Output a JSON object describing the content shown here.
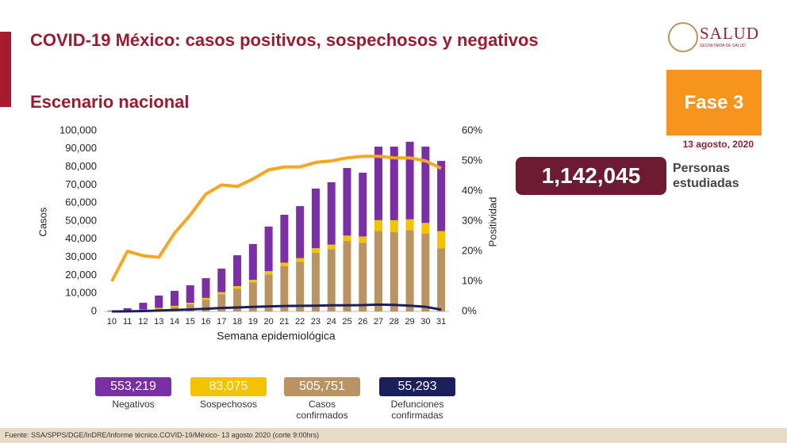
{
  "header": {
    "title": "COVID-19 México: casos positivos, sospechosos y negativos",
    "subtitle": "Escenario nacional",
    "logo": "SALUD",
    "logo_sub": "SECRETARÍA DE SALUD",
    "phase": "Fase 3",
    "date": "13 agosto, 2020"
  },
  "stats": {
    "total": "1,142,045",
    "label": "Personas estudiadas"
  },
  "chart_data": {
    "type": "stacked-bar-line",
    "categories": [
      "10",
      "11",
      "12",
      "13",
      "14",
      "15",
      "16",
      "17",
      "18",
      "19",
      "20",
      "21",
      "22",
      "23",
      "24",
      "25",
      "26",
      "27",
      "28",
      "29",
      "30",
      "31"
    ],
    "xlabel": "Semana epidemiológica",
    "ylabel": "Casos",
    "y2label": "Positividad",
    "ylim": [
      0,
      100000
    ],
    "yticks": [
      0,
      {
        "value": 10000,
        "label": "10,000"
      },
      {
        "value": 20000,
        "label": "20,000"
      },
      {
        "value": 30000,
        "label": "30,000"
      },
      {
        "value": 40000,
        "label": "40,000"
      },
      {
        "value": 50000,
        "label": "50,000"
      },
      {
        "value": 60000,
        "label": "60,000"
      },
      {
        "value": 70000,
        "label": "70,000"
      },
      {
        "value": 80000,
        "label": "80,000"
      },
      {
        "value": 90000,
        "label": "90,000"
      },
      {
        "value": 100000,
        "label": "100,000"
      }
    ],
    "y2lim": [
      0,
      60
    ],
    "y2ticks": [
      {
        "value": 0,
        "label": "0%"
      },
      {
        "value": 10,
        "label": "10%"
      },
      {
        "value": 20,
        "label": "20%"
      },
      {
        "value": 30,
        "label": "30%"
      },
      {
        "value": 40,
        "label": "40%"
      },
      {
        "value": 50,
        "label": "50%"
      },
      {
        "value": 60,
        "label": "60%"
      }
    ],
    "series": [
      {
        "name": "Negativos",
        "total": "553,219",
        "color": "#7b2fa5",
        "kind": "bar",
        "values": [
          350,
          1400,
          3700,
          6800,
          8300,
          9700,
          10900,
          13000,
          17100,
          19800,
          24700,
          26500,
          28800,
          33000,
          34500,
          37400,
          35300,
          40700,
          40700,
          42900,
          42200,
          38800
        ]
      },
      {
        "name": "Sospechosos",
        "total": "83,075",
        "color": "#f5c200",
        "kind": "bar",
        "values": [
          50,
          100,
          300,
          500,
          600,
          800,
          1000,
          1200,
          1500,
          1500,
          1800,
          2000,
          2000,
          2500,
          2500,
          3000,
          3500,
          6000,
          6500,
          6000,
          6000,
          9500
        ]
      },
      {
        "name": "Casos confirmados",
        "total": "505,751",
        "color": "#b99462",
        "kind": "bar",
        "values": [
          100,
          300,
          800,
          1500,
          2500,
          4000,
          6500,
          9500,
          12500,
          16000,
          20500,
          25000,
          27500,
          32500,
          34500,
          39000,
          38000,
          44500,
          44000,
          45000,
          43000,
          35000
        ]
      },
      {
        "name": "Defunciones confirmadas",
        "total": "55,293",
        "color": "#1b1f5c",
        "kind": "line",
        "values": [
          0,
          50,
          200,
          500,
          800,
          1100,
          1500,
          1900,
          2200,
          2500,
          2800,
          3000,
          3100,
          3200,
          3400,
          3400,
          3500,
          3800,
          3600,
          3200,
          2600,
          1000
        ]
      },
      {
        "color": "#f5a623",
        "kind": "line",
        "axis": "y2",
        "values": [
          10,
          20,
          18.5,
          18,
          26,
          32,
          39,
          42,
          41.5,
          44,
          47,
          48,
          48,
          49.5,
          50,
          51,
          51.5,
          51.5,
          51,
          51,
          50,
          47.5
        ]
      }
    ]
  },
  "footer": "Fuente: SSA/SPPS/DGE/InDRE/Informe técnico.COVID-19/México- 13 agosto 2020 (corte 9:00hrs)"
}
